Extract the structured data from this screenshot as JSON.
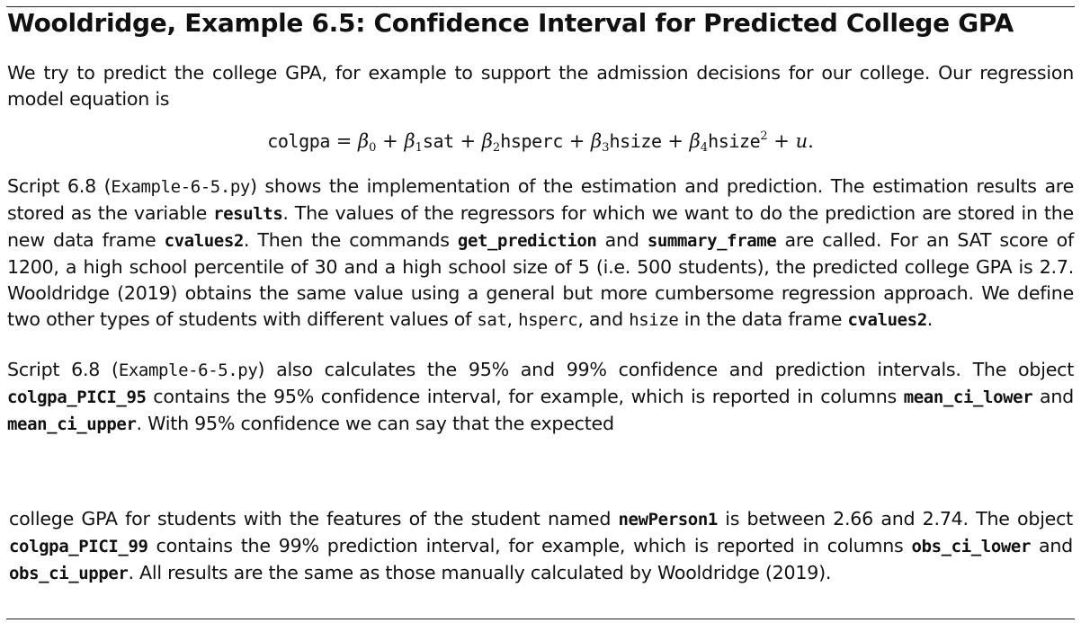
{
  "section": {
    "title": "Wooldridge, Example 6.5: Confidence Interval for Predicted College GPA"
  },
  "intro": {
    "text": "We try to predict the college GPA, for example to support the admission decisions for our college. Our regression model equation is"
  },
  "equation": {
    "lhs": "colgpa",
    "eq": "=",
    "b0": "β",
    "b0_sub": "0",
    "plus": "+",
    "b1": "β",
    "b1_sub": "1",
    "v1": "sat",
    "b2": "β",
    "b2_sub": "2",
    "v2": "hsperc",
    "b3": "β",
    "b3_sub": "3",
    "v3": "hsize",
    "b4": "β",
    "b4_sub": "4",
    "v4": "hsize",
    "v4_sup": "2",
    "err": "u",
    "end": "."
  },
  "para1": {
    "t1": "Script 6.8 (",
    "m1": "Example-6-5.py",
    "t2": ") shows the implementation of the estimation and prediction. The estimation results are stored as the variable ",
    "m2": "results",
    "t3": ". The values of the regressors for which we want to do the prediction are stored in the new data frame ",
    "m3": "cvalues2",
    "t4": ". Then the commands ",
    "m4": "get_prediction",
    "t5": " and ",
    "m5": "summary_frame",
    "t6": " are called. For an SAT score of 1200, a high school percentile of 30 and a high school size of 5 (i.e. 500 students), the predicted college GPA is 2.7. Wooldridge (2019) obtains the same value using a general but more cumbersome regression approach. We define two other types of students with different values of ",
    "m6": "sat",
    "t7": ", ",
    "m7": "hsperc",
    "t8": ", and ",
    "m8": "hsize",
    "t9": " in the data frame ",
    "m9": "cvalues2",
    "t10": "."
  },
  "para2": {
    "t1": "Script 6.8 (",
    "m1": "Example-6-5.py",
    "t2": ") also calculates the 95% and 99% confidence and prediction intervals. The object ",
    "m2": "colgpa_PICI_95",
    "t3": " contains the 95% confidence interval, for example, which is reported in columns ",
    "m3": "mean_ci_lower",
    "t4": " and ",
    "m4": "mean_ci_upper",
    "t5": ". With 95% confidence we can say that the expected"
  },
  "para3": {
    "t1": "college GPA for students with the features of the student named ",
    "m1": "newPerson1",
    "t2": " is between 2.66 and 2.74. The object ",
    "m2": "colgpa_PICI_99",
    "t3": " contains the 99% prediction interval, for example, which is reported in columns ",
    "m3": "obs_ci_lower",
    "t4": " and ",
    "m4": "obs_ci_upper",
    "t5": ". All results are the same as those manually calculated by Wooldridge (2019)."
  }
}
